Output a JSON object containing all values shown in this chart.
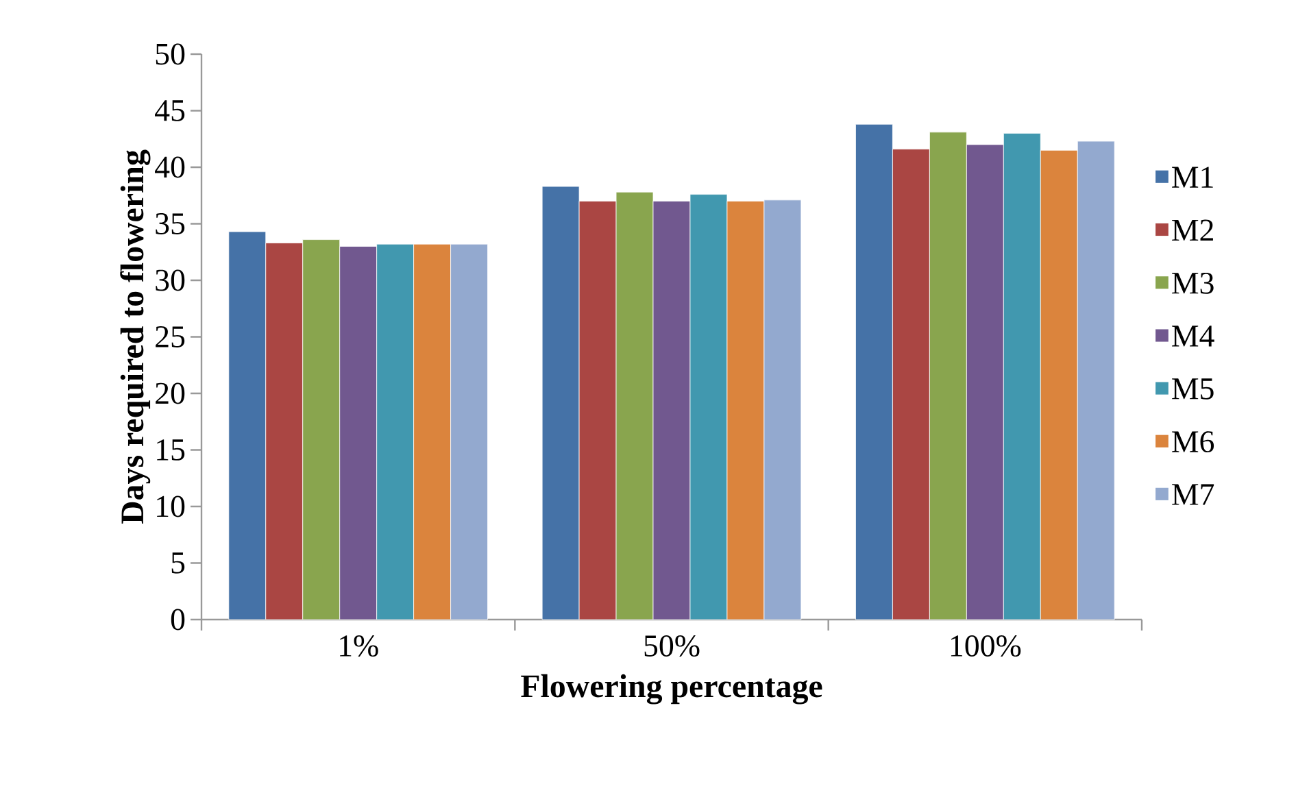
{
  "chart_data": {
    "type": "bar",
    "xlabel": "Flowering percentage",
    "ylabel": "Days required to flowering",
    "categories": [
      "1%",
      "50%",
      "100%"
    ],
    "ylim": [
      0,
      50
    ],
    "yticks": [
      0,
      5,
      10,
      15,
      20,
      25,
      30,
      35,
      40,
      45,
      50
    ],
    "legend": "right",
    "grid": false,
    "series": [
      {
        "name": "M1",
        "color": "#4572a7",
        "values": [
          34.3,
          38.3,
          43.8
        ]
      },
      {
        "name": "M2",
        "color": "#aa4643",
        "values": [
          33.3,
          37.0,
          41.6
        ]
      },
      {
        "name": "M3",
        "color": "#89a54e",
        "values": [
          33.6,
          37.8,
          43.1
        ]
      },
      {
        "name": "M4",
        "color": "#71588f",
        "values": [
          33.0,
          37.0,
          42.0
        ]
      },
      {
        "name": "M5",
        "color": "#4198af",
        "values": [
          33.2,
          37.6,
          43.0
        ]
      },
      {
        "name": "M6",
        "color": "#db843d",
        "values": [
          33.2,
          37.0,
          41.5
        ]
      },
      {
        "name": "M7",
        "color": "#93a9cf",
        "values": [
          33.2,
          37.1,
          42.3
        ]
      }
    ]
  }
}
